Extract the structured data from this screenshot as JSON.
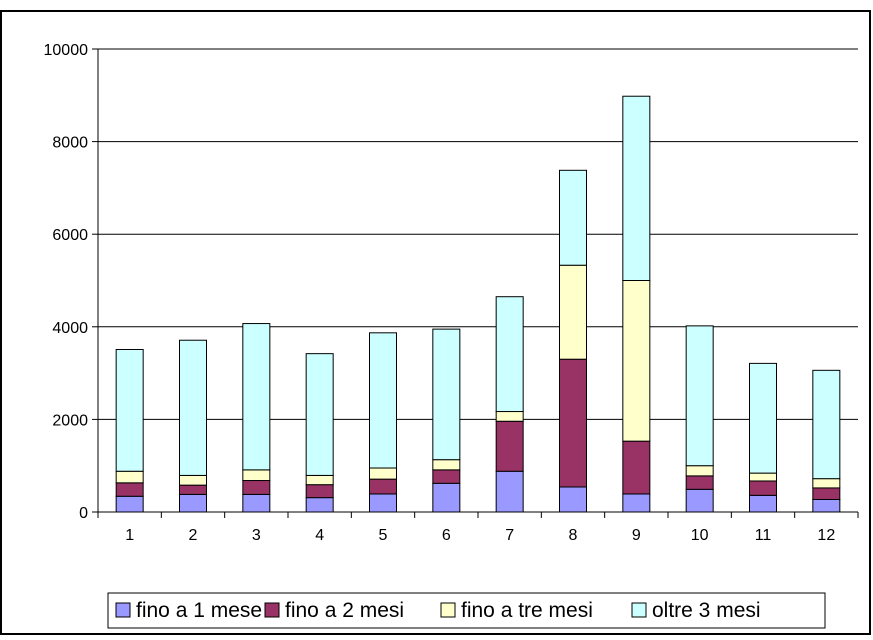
{
  "chart_data": {
    "type": "bar",
    "stacked": true,
    "title": "",
    "xlabel": "",
    "ylabel": "",
    "categories": [
      "1",
      "2",
      "3",
      "4",
      "5",
      "6",
      "7",
      "8",
      "9",
      "10",
      "11",
      "12"
    ],
    "ylim": [
      0,
      10000
    ],
    "yticks": [
      0,
      2000,
      4000,
      6000,
      8000,
      10000
    ],
    "ytick_labels": [
      "0",
      "2000",
      "4000",
      "6000",
      "8000",
      "10000"
    ],
    "grid": true,
    "legend_position": "bottom",
    "series": [
      {
        "name": "fino a 1 mese",
        "color": "#9999ff",
        "values": [
          340,
          380,
          380,
          310,
          390,
          620,
          880,
          540,
          390,
          490,
          360,
          270
        ]
      },
      {
        "name": "fino a 2 mesi",
        "color": "#993366",
        "values": [
          290,
          200,
          300,
          280,
          320,
          290,
          1080,
          2760,
          1140,
          290,
          310,
          250
        ]
      },
      {
        "name": "fino a tre mesi",
        "color": "#ffffcc",
        "values": [
          250,
          210,
          230,
          200,
          240,
          220,
          210,
          2030,
          3470,
          220,
          170,
          200
        ]
      },
      {
        "name": "oltre 3 mesi",
        "color": "#ccffff",
        "values": [
          2630,
          2920,
          3160,
          2630,
          2920,
          2820,
          2480,
          2050,
          3980,
          3020,
          2370,
          2340
        ]
      }
    ]
  }
}
